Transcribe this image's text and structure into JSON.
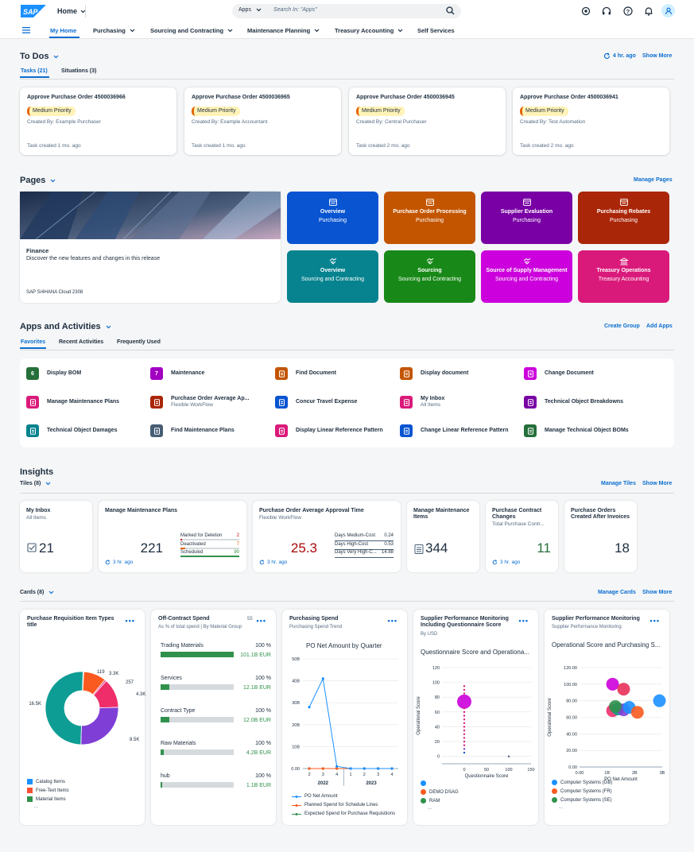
{
  "shell": {
    "home_label": "Home",
    "search_scope": "Apps",
    "search_placeholder": "Search In: \"Apps\""
  },
  "nav": {
    "items": [
      {
        "label": "My Home"
      },
      {
        "label": "Purchasing"
      },
      {
        "label": "Sourcing and Contracting"
      },
      {
        "label": "Maintenance Planning"
      },
      {
        "label": "Treasury Accounting"
      },
      {
        "label": "Self Services"
      }
    ]
  },
  "todos": {
    "title": "To Dos",
    "refresh": "4 hr. ago",
    "show_more": "Show More",
    "tabs": [
      "Tasks (21)",
      "Situations (3)"
    ],
    "cards": [
      {
        "title": "Approve Purchase Order 4500036966",
        "priority": "Medium Priority",
        "created_by": "Created By: Example Purchaser",
        "created": "Task created 1 mo. ago"
      },
      {
        "title": "Approve Purchase Order 4500036965",
        "priority": "Medium Priority",
        "created_by": "Created By: Example Accountant",
        "created": "Task created 1 mo. ago"
      },
      {
        "title": "Approve Purchase Order 4500036945",
        "priority": "Medium Priority",
        "created_by": "Created By: Central Purchaser",
        "created": "Task created 2 mo. ago"
      },
      {
        "title": "Approve Purchase Order 4500036941",
        "priority": "Medium Priority",
        "created_by": "Created By: Test Automation",
        "created": "Task created 2 mo. ago"
      }
    ]
  },
  "pages": {
    "title": "Pages",
    "manage": "Manage Pages",
    "hero": {
      "title": "Finance",
      "desc": "Discover the new features and changes in this release",
      "footer": "SAP S/4HANA Cloud 2308"
    },
    "tiles": [
      {
        "name": "Overview",
        "space": "Purchasing",
        "color": "#0854d1",
        "icon": "page-icon"
      },
      {
        "name": "Purchase Order Processing",
        "space": "Purchasing",
        "color": "#c35500",
        "icon": "page-icon"
      },
      {
        "name": "Supplier Evaluation",
        "space": "Purchasing",
        "color": "#7800a4",
        "icon": "page-icon"
      },
      {
        "name": "Purchasing Rebates",
        "space": "Purchasing",
        "color": "#aa2608",
        "icon": "page-icon"
      },
      {
        "name": "Overview",
        "space": "Sourcing and Contracting",
        "color": "#07838f",
        "icon": "handshake-icon"
      },
      {
        "name": "Sourcing",
        "space": "Sourcing and Contracting",
        "color": "#188918",
        "icon": "handshake-icon"
      },
      {
        "name": "Source of Supply Management",
        "space": "Sourcing and Contracting",
        "color": "#cc00dc",
        "icon": "handshake-icon"
      },
      {
        "name": "Treasury Operations",
        "space": "Treasury Accounting",
        "color": "#da1a7a",
        "icon": "bank-icon"
      }
    ]
  },
  "apps": {
    "title": "Apps and Activities",
    "create_group": "Create Group",
    "add_apps": "Add Apps",
    "tabs": [
      "Favorites",
      "Recent Activities",
      "Frequently Used"
    ],
    "items": [
      {
        "label": "Display BOM",
        "sub": "",
        "color": "#256f3a",
        "badge": "6"
      },
      {
        "label": "Maintenance",
        "sub": "",
        "color": "#a100c2",
        "badge": "7"
      },
      {
        "label": "Find Document",
        "sub": "",
        "color": "#c35500",
        "badge": ""
      },
      {
        "label": "Display document",
        "sub": "",
        "color": "#c35500",
        "badge": ""
      },
      {
        "label": "Change Document",
        "sub": "",
        "color": "#cc00dc",
        "badge": ""
      },
      {
        "label": "Manage Maintenance Plans",
        "sub": "",
        "color": "#da1a7a",
        "badge": ""
      },
      {
        "label": "Purchase Order Average Ap...",
        "sub": "Flexible WorkFlow",
        "color": "#aa2608",
        "badge": ""
      },
      {
        "label": "Concur Travel Expense",
        "sub": "",
        "color": "#0854d1",
        "badge": ""
      },
      {
        "label": "My Inbox",
        "sub": "All Items",
        "color": "#da1a7a",
        "badge": ""
      },
      {
        "label": "Technical Object Breakdowns",
        "sub": "",
        "color": "#7800a4",
        "badge": ""
      },
      {
        "label": "Technical Object Damages",
        "sub": "",
        "color": "#07838f",
        "badge": ""
      },
      {
        "label": "Find Maintenance Plans",
        "sub": "",
        "color": "#475e75",
        "badge": ""
      },
      {
        "label": "Display Linear Reference Pattern",
        "sub": "",
        "color": "#da1a7a",
        "badge": ""
      },
      {
        "label": "Change Linear Reference Pattern",
        "sub": "",
        "color": "#0854d1",
        "badge": ""
      },
      {
        "label": "Manage Technical Object BOMs",
        "sub": "",
        "color": "#256f3a",
        "badge": ""
      }
    ]
  },
  "insights": {
    "title": "Insights",
    "tiles_label": "Tiles (8)",
    "manage_tiles": "Manage Tiles",
    "show_more": "Show More",
    "cards_label": "Cards (8)",
    "manage_cards": "Manage Cards",
    "tiles": {
      "inbox": {
        "title": "My Inbox",
        "sub": "All Items",
        "value": "21"
      },
      "mmp": {
        "title": "Manage Maintenance Plans",
        "value": "221",
        "refresh": "3 hr. ago",
        "rows": [
          {
            "label": "Marked for Deletion",
            "value": "2",
            "fraction": 0.02,
            "color": "#d20a0a"
          },
          {
            "label": "Deactivated",
            "value": "7",
            "fraction": 0.08,
            "color": "#e76500"
          },
          {
            "label": "Scheduled",
            "value": "90",
            "fraction": 1.0,
            "color": "#30914c"
          }
        ]
      },
      "poat": {
        "title": "Purchase Order Average Approval Time",
        "sub": "Flexible WorkFlow",
        "value": "25.3",
        "refresh": "3 hr. ago",
        "rows": [
          {
            "label": "Days Medium-Cost",
            "value": "0.24"
          },
          {
            "label": "Days High-Cost",
            "value": "0.53"
          },
          {
            "label": "Days Very High-C...",
            "value": "14.88"
          }
        ]
      },
      "mmi": {
        "title": "Manage Maintenance Items",
        "value": "344"
      },
      "pcc": {
        "title": "Purchase Contract Changes",
        "sub": "Total Purchase Contr...",
        "value": "11",
        "refresh": "3 hr. ago"
      },
      "poc": {
        "title": "Purchase Orders Created After Invoices",
        "value": "18"
      }
    }
  },
  "cards": {
    "pr": {
      "title": "Purchase Requisition Item Types title",
      "legend": [
        {
          "label": "Catalog Items",
          "color": "#1b90ff"
        },
        {
          "label": "Free-Text Items",
          "color": "#fa4f32"
        },
        {
          "label": "Material Items",
          "color": "#30914c"
        }
      ],
      "ellipsis": "..."
    },
    "ocs": {
      "title": "Off-Contract Spend",
      "count": "55",
      "sub": "As % of total spend | By Material Group",
      "rows": [
        {
          "label": "Trading Materials",
          "pct": "100 %",
          "value": "101.1B EUR",
          "fraction": 1.0
        },
        {
          "label": "Services",
          "pct": "100 %",
          "value": "12.1B EUR",
          "fraction": 0.12
        },
        {
          "label": "Contract Type",
          "pct": "100 %",
          "value": "12.0B EUR",
          "fraction": 0.12
        },
        {
          "label": "Raw Materials",
          "pct": "100 %",
          "value": "4.2B EUR",
          "fraction": 0.04
        },
        {
          "label": "hub",
          "pct": "100 %",
          "value": "1.1B EUR",
          "fraction": 0.01
        }
      ]
    },
    "ps": {
      "title": "Purchasing Spend",
      "sub": "Purchasing Spend Trend",
      "chart_title": "PO Net Amount by Quarter",
      "legend": [
        "PO Net Amount",
        "Planned Spend for Schedule Lines",
        "Expected Spend for Purchase Requisitions"
      ]
    },
    "spq": {
      "title": "Supplier Performance Monitoring Including Questionnaire Score",
      "sub": "By USD",
      "chart_title": "Questionnaire Score and Operationa...",
      "xlabel": "Questionnaire Score",
      "ylabel": "Operational Score",
      "legend": [
        "",
        "DEMO DSAG",
        "RAM"
      ],
      "ellipsis": "..."
    },
    "spm": {
      "title": "Supplier Performance Monitoring",
      "sub": "Supplier Performance Monitoring",
      "chart_title": "Operational Score and Purchasing S...",
      "xlabel": "PO Net Amount",
      "ylabel": "Operational Score",
      "legend": [
        "Computer Systems (GB)",
        "Computer Systems (FR)",
        "Computer Systems (SE)"
      ],
      "ellipsis": "..."
    }
  },
  "chart_data": [
    {
      "type": "pie",
      "title": "Purchase Requisition Item Types title",
      "labels": [
        "16.5K",
        "8.5K",
        "4.3K",
        "257",
        "3.3K",
        "119"
      ],
      "values": [
        16500,
        8500,
        4300,
        257,
        3300,
        119
      ],
      "colors": [
        "#0e9d94",
        "#7f3fd6",
        "#f02d6b",
        "#e83a8d",
        "#fa5a1f",
        "#3fa9c9"
      ],
      "donut": true
    },
    {
      "type": "line",
      "title": "PO Net Amount by Quarter",
      "categories": [
        "2",
        "3",
        "4",
        "1",
        "2",
        "3",
        "4"
      ],
      "groups": [
        "2022",
        "2023"
      ],
      "ylim": [
        0,
        50
      ],
      "yticks": [
        "0.00",
        "10B",
        "20B",
        "30B",
        "40B",
        "50B"
      ],
      "series": [
        {
          "name": "PO Net Amount",
          "values": [
            28,
            41,
            1,
            0,
            0,
            0,
            0
          ],
          "color": "#1b90ff"
        },
        {
          "name": "Planned Spend for Schedule Lines",
          "values": [
            0,
            0,
            0,
            0,
            0,
            0,
            0
          ],
          "color": "#fa5a1f"
        },
        {
          "name": "Expected Spend for Purchase Requisitions",
          "values": [
            0,
            0,
            0,
            0,
            0,
            0,
            0
          ],
          "color": "#30914c"
        }
      ]
    },
    {
      "type": "scatter",
      "title": "Questionnaire Score and Operationa...",
      "xlabel": "Questionnaire Score",
      "ylabel": "Operational Score",
      "xlim": [
        -50,
        150
      ],
      "ylim": [
        -10,
        120
      ],
      "xticks": [
        "0",
        "50",
        "100",
        "150"
      ],
      "yticks": [
        "0",
        "20",
        "40",
        "60",
        "80",
        "100",
        "120"
      ],
      "points": [
        {
          "x": 0,
          "y": 74,
          "r": 9,
          "color": "#cc00dc"
        },
        {
          "x": 0,
          "y": 95,
          "color": "#da1a7a"
        },
        {
          "x": 0,
          "y": 90,
          "color": "#da1a7a"
        },
        {
          "x": 0,
          "y": 85,
          "color": "#da1a7a"
        },
        {
          "x": 0,
          "y": 65,
          "color": "#da1a7a"
        },
        {
          "x": 0,
          "y": 60,
          "color": "#da1a7a"
        },
        {
          "x": 0,
          "y": 55,
          "color": "#da1a7a"
        },
        {
          "x": 0,
          "y": 50,
          "color": "#da1a7a"
        },
        {
          "x": 0,
          "y": 45,
          "color": "#da1a7a"
        },
        {
          "x": 0,
          "y": 40,
          "color": "#da1a7a"
        },
        {
          "x": 0,
          "y": 35,
          "color": "#da1a7a"
        },
        {
          "x": 0,
          "y": 30,
          "color": "#da1a7a"
        },
        {
          "x": 0,
          "y": 25,
          "color": "#da1a7a"
        },
        {
          "x": 0,
          "y": 20,
          "color": "#da1a7a"
        },
        {
          "x": 0,
          "y": 15,
          "color": "#da1a7a"
        },
        {
          "x": 0,
          "y": 10,
          "color": "#7f3fd6"
        },
        {
          "x": 0,
          "y": 5,
          "color": "#0854d1"
        },
        {
          "x": 100,
          "y": 0,
          "color": "#475e75"
        }
      ]
    },
    {
      "type": "scatter",
      "title": "Operational Score and Purchasing S...",
      "xlabel": "PO Net Amount",
      "ylabel": "Operational Score",
      "xlim": [
        0,
        3
      ],
      "ylim": [
        0,
        120
      ],
      "xticks": [
        "0.00",
        "1B",
        "2B",
        "3B"
      ],
      "yticks": [
        "0.00",
        "20.00",
        "40.00",
        "60.00",
        "80.00",
        "100.00",
        "120.00"
      ],
      "points": [
        {
          "x": 1.2,
          "y": 100,
          "r": 8,
          "color": "#cc00dc"
        },
        {
          "x": 1.6,
          "y": 94,
          "r": 8,
          "color": "#e8305a"
        },
        {
          "x": 2.9,
          "y": 80,
          "r": 8,
          "color": "#1b90ff"
        },
        {
          "x": 1.2,
          "y": 68,
          "r": 8,
          "color": "#f02d6b"
        },
        {
          "x": 1.4,
          "y": 70,
          "r": 8,
          "color": "#0e9d94"
        },
        {
          "x": 1.6,
          "y": 69,
          "r": 8,
          "color": "#7f3fd6"
        },
        {
          "x": 1.8,
          "y": 72,
          "r": 8,
          "color": "#1b90ff"
        },
        {
          "x": 2.1,
          "y": 66,
          "r": 8,
          "color": "#fa5a1f"
        },
        {
          "x": 1.3,
          "y": 73,
          "r": 8,
          "color": "#30914c"
        }
      ]
    }
  ]
}
